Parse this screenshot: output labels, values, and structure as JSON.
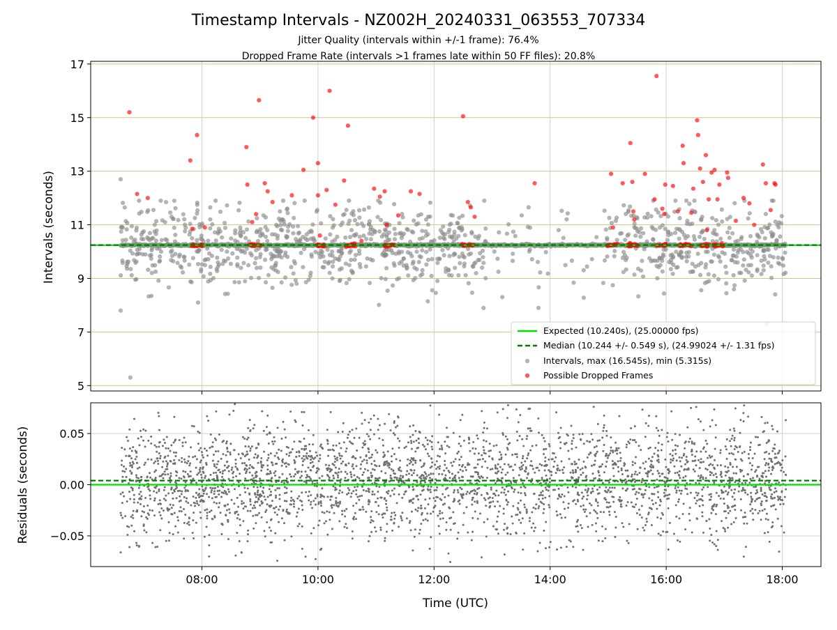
{
  "chart_data": [
    {
      "type": "scatter",
      "title": "Timestamp Intervals - NZ002H_20240331_063553_707334",
      "subtitle": [
        "Jitter Quality (intervals within +/-1 frame): 76.4%",
        "Dropped Frame Rate (intervals >1 frames late within 50 FF files): 20.8%"
      ],
      "xlabel": "",
      "ylabel": "Intervals (seconds)",
      "x_type": "time",
      "xlim": [
        "06:05",
        "18:40"
      ],
      "ylim": [
        4.8,
        17.1
      ],
      "x_ticks": [
        "08:00",
        "10:00",
        "12:00",
        "14:00",
        "16:00",
        "18:00"
      ],
      "y_ticks": [
        5,
        7,
        9,
        11,
        13,
        15,
        17
      ],
      "grid": true,
      "legend_position": "lower-right",
      "lines": [
        {
          "name": "Expected (10.240s), (25.00000 fps)",
          "y": 10.24,
          "style": "solid",
          "color": "#00e000"
        },
        {
          "name": "Median (10.244 +/- 0.549 s), (24.99024 +/- 1.31 fps)",
          "y": 10.244,
          "style": "dashed",
          "color": "#007a00"
        }
      ],
      "series": [
        {
          "name": "Intervals, max (16.545s), min (5.315s)",
          "color": "#8c8c8c",
          "x_range": [
            "06:36",
            "18:04"
          ],
          "baseline": 10.24,
          "max": 16.545,
          "min": 5.315,
          "notable_points": [
            {
              "x": "06:36",
              "y": 12.7
            },
            {
              "x": "06:36",
              "y": 7.8
            },
            {
              "x": "06:46",
              "y": 5.3
            },
            {
              "x": "07:56",
              "y": 8.1
            },
            {
              "x": "11:54",
              "y": 11.3
            },
            {
              "x": "13:48",
              "y": 7.9
            },
            {
              "x": "17:44",
              "y": 7.3
            }
          ]
        },
        {
          "name": "Possible Dropped Frames",
          "color": "#ff0000",
          "clusters_at_baseline": [
            "07:55",
            "08:55",
            "10:05",
            "10:35",
            "11:15",
            "12:35",
            "15:05",
            "15:25",
            "15:55",
            "16:20",
            "16:40",
            "16:55"
          ],
          "points": [
            {
              "x": "06:45",
              "y": 15.2
            },
            {
              "x": "06:53",
              "y": 12.15
            },
            {
              "x": "07:04",
              "y": 12.0
            },
            {
              "x": "07:48",
              "y": 13.4
            },
            {
              "x": "07:55",
              "y": 14.35
            },
            {
              "x": "07:50",
              "y": 10.85
            },
            {
              "x": "08:03",
              "y": 10.9
            },
            {
              "x": "08:46",
              "y": 13.9
            },
            {
              "x": "08:47",
              "y": 12.5
            },
            {
              "x": "08:52",
              "y": 11.1
            },
            {
              "x": "08:56",
              "y": 11.4
            },
            {
              "x": "08:59",
              "y": 15.65
            },
            {
              "x": "09:05",
              "y": 12.55
            },
            {
              "x": "09:08",
              "y": 12.25
            },
            {
              "x": "09:13",
              "y": 11.85
            },
            {
              "x": "09:33",
              "y": 12.1
            },
            {
              "x": "09:45",
              "y": 13.05
            },
            {
              "x": "09:55",
              "y": 15.0
            },
            {
              "x": "10:00",
              "y": 13.3
            },
            {
              "x": "10:00",
              "y": 12.1
            },
            {
              "x": "10:02",
              "y": 10.6
            },
            {
              "x": "10:09",
              "y": 12.3
            },
            {
              "x": "10:12",
              "y": 16.0
            },
            {
              "x": "10:18",
              "y": 11.75
            },
            {
              "x": "10:27",
              "y": 12.65
            },
            {
              "x": "10:31",
              "y": 14.7
            },
            {
              "x": "10:45",
              "y": 10.4
            },
            {
              "x": "10:58",
              "y": 12.35
            },
            {
              "x": "11:04",
              "y": 12.05
            },
            {
              "x": "11:09",
              "y": 12.25
            },
            {
              "x": "11:11",
              "y": 11.0
            },
            {
              "x": "11:23",
              "y": 11.35
            },
            {
              "x": "11:36",
              "y": 12.25
            },
            {
              "x": "11:45",
              "y": 12.15
            },
            {
              "x": "12:30",
              "y": 15.05
            },
            {
              "x": "12:35",
              "y": 11.85
            },
            {
              "x": "12:38",
              "y": 11.65
            },
            {
              "x": "12:42",
              "y": 11.3
            },
            {
              "x": "13:44",
              "y": 12.55
            },
            {
              "x": "15:03",
              "y": 12.9
            },
            {
              "x": "15:05",
              "y": 10.9
            },
            {
              "x": "15:15",
              "y": 12.55
            },
            {
              "x": "15:23",
              "y": 14.05
            },
            {
              "x": "15:25",
              "y": 12.6
            },
            {
              "x": "15:26",
              "y": 11.5
            },
            {
              "x": "15:27",
              "y": 11.2
            },
            {
              "x": "15:38",
              "y": 12.9
            },
            {
              "x": "15:48",
              "y": 11.95
            },
            {
              "x": "15:50",
              "y": 16.55
            },
            {
              "x": "15:56",
              "y": 11.6
            },
            {
              "x": "15:58",
              "y": 11.4
            },
            {
              "x": "15:59",
              "y": 12.5
            },
            {
              "x": "16:07",
              "y": 12.45
            },
            {
              "x": "16:12",
              "y": 11.5
            },
            {
              "x": "16:17",
              "y": 13.95
            },
            {
              "x": "16:18",
              "y": 13.3
            },
            {
              "x": "16:26",
              "y": 11.45
            },
            {
              "x": "16:28",
              "y": 12.35
            },
            {
              "x": "16:32",
              "y": 14.9
            },
            {
              "x": "16:33",
              "y": 14.35
            },
            {
              "x": "16:35",
              "y": 13.1
            },
            {
              "x": "16:38",
              "y": 12.6
            },
            {
              "x": "16:41",
              "y": 13.6
            },
            {
              "x": "16:42",
              "y": 10.8
            },
            {
              "x": "16:44",
              "y": 11.95
            },
            {
              "x": "16:47",
              "y": 12.95
            },
            {
              "x": "16:50",
              "y": 13.05
            },
            {
              "x": "16:53",
              "y": 11.95
            },
            {
              "x": "16:55",
              "y": 12.5
            },
            {
              "x": "17:03",
              "y": 12.95
            },
            {
              "x": "17:04",
              "y": 12.75
            },
            {
              "x": "17:12",
              "y": 11.15
            },
            {
              "x": "17:20",
              "y": 12.0
            },
            {
              "x": "17:26",
              "y": 11.8
            },
            {
              "x": "17:31",
              "y": 11.0
            },
            {
              "x": "17:40",
              "y": 13.25
            },
            {
              "x": "17:43",
              "y": 12.55
            },
            {
              "x": "17:48",
              "y": 11.55
            },
            {
              "x": "17:52",
              "y": 12.55
            },
            {
              "x": "17:53",
              "y": 12.5
            }
          ]
        }
      ]
    },
    {
      "type": "scatter",
      "title": "",
      "xlabel": "Time (UTC)",
      "ylabel": "Residuals (seconds)",
      "x_type": "time",
      "xlim": [
        "06:05",
        "18:40"
      ],
      "ylim": [
        -0.08,
        0.08
      ],
      "x_ticks": [
        "08:00",
        "10:00",
        "12:00",
        "14:00",
        "16:00",
        "18:00"
      ],
      "y_ticks": [
        "0.05",
        "0.00",
        "−0.05"
      ],
      "y_tick_values": [
        0.05,
        0.0,
        -0.05
      ],
      "grid": true,
      "lines": [
        {
          "y": 0.0,
          "style": "solid",
          "color": "#00e000"
        },
        {
          "y": 0.004,
          "style": "dashed",
          "color": "#007a00"
        }
      ],
      "series": [
        {
          "color": "#707070",
          "x_range": [
            "06:36",
            "18:04"
          ],
          "center": 0.004,
          "spread": 0.028,
          "clip": [
            -0.08,
            0.08
          ]
        }
      ]
    }
  ]
}
